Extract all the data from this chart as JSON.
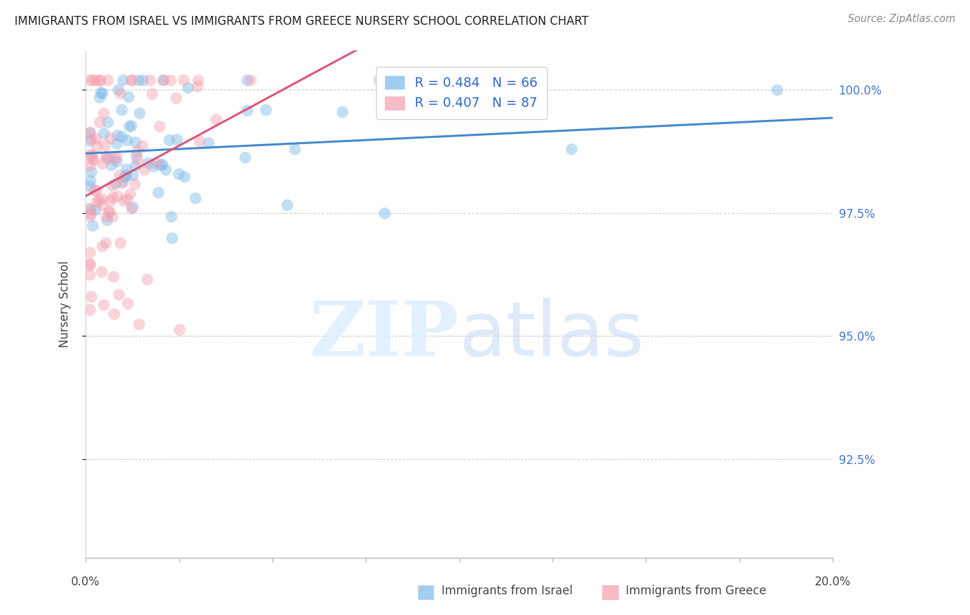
{
  "title": "IMMIGRANTS FROM ISRAEL VS IMMIGRANTS FROM GREECE NURSERY SCHOOL CORRELATION CHART",
  "source": "Source: ZipAtlas.com",
  "ylabel": "Nursery School",
  "ytick_labels": [
    "92.5%",
    "95.0%",
    "97.5%",
    "100.0%"
  ],
  "ytick_values": [
    0.925,
    0.95,
    0.975,
    1.0
  ],
  "xlim": [
    0.0,
    0.2
  ],
  "ylim": [
    0.905,
    1.008
  ],
  "israel_color": "#7ab8e8",
  "greece_color": "#f4a0b0",
  "israel_line_color": "#4488cc",
  "greece_line_color": "#dd5577",
  "israel_R": 0.484,
  "israel_N": 66,
  "greece_R": 0.407,
  "greece_N": 87,
  "marker_size": 150,
  "marker_alpha": 0.45,
  "legend_israel": "R = 0.484   N = 66",
  "legend_greece": "R = 0.407   N = 87",
  "legend_text_color": "#3366cc",
  "bottom_legend_israel": "Immigrants from Israel",
  "bottom_legend_greece": "Immigrants from Greece"
}
